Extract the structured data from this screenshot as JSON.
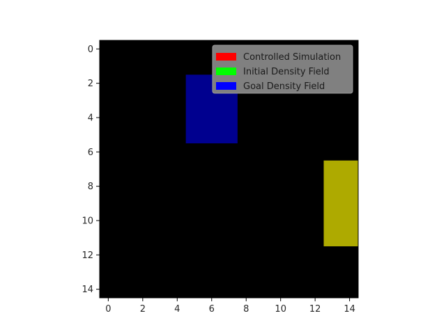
{
  "chart_data": {
    "type": "heatmap",
    "title": "",
    "xlabel": "",
    "ylabel": "",
    "grid": false,
    "xlim": [
      -0.5,
      14.5
    ],
    "ylim": [
      14.5,
      -0.5
    ],
    "xticks": [
      0,
      2,
      4,
      6,
      8,
      10,
      12,
      14
    ],
    "yticks": [
      0,
      2,
      4,
      6,
      8,
      10,
      12,
      14
    ],
    "grid_size": [
      15,
      15
    ],
    "background_color": "#000000",
    "regions": [
      {
        "label": "blue-block",
        "x_range": [
          5,
          7
        ],
        "y_range": [
          2,
          5
        ],
        "color": "#00008f"
      },
      {
        "label": "yellow-block",
        "x_range": [
          13,
          14
        ],
        "y_range": [
          7,
          11
        ],
        "color": "#aeaa00"
      }
    ],
    "legend": {
      "placement": "upper-right",
      "background": "#808080",
      "entries": [
        {
          "name": "Controlled Simulation",
          "color": "#ff0000"
        },
        {
          "name": "Initial Density Field",
          "color": "#00ff00"
        },
        {
          "name": "Goal Density Field",
          "color": "#0000ff"
        }
      ]
    }
  }
}
